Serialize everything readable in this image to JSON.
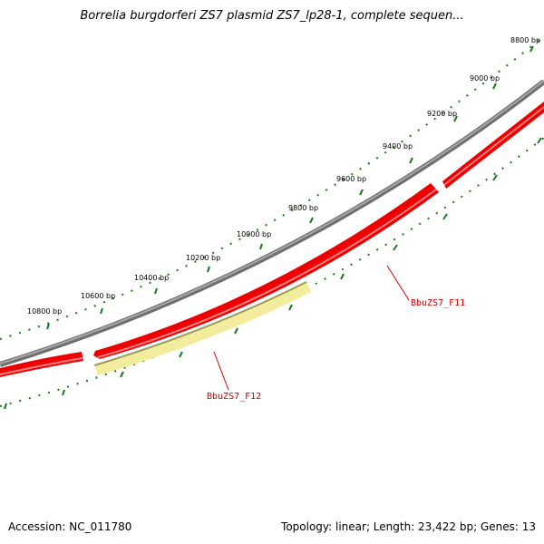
{
  "title": "Borrelia burgdorferi ZS7 plasmid ZS7_lp28-1, complete sequen...",
  "footer": {
    "accession": "Accession: NC_011780",
    "summary": "Topology: linear; Length: 23,422 bp; Genes: 13"
  },
  "tick_labels": [
    "8800 bp",
    "9000 bp",
    "9200 bp",
    "9400 bp",
    "9600 bp",
    "9800 bp",
    "10000 bp",
    "10200 bp",
    "10400 bp",
    "10600 bp",
    "10800 bp"
  ],
  "genes": [
    {
      "label": "BbuZS7_F11",
      "color": "#dd0000"
    },
    {
      "label": "BbuZS7_F12",
      "color": "#f5eea0"
    }
  ],
  "colors": {
    "backbone": "#7d7d7d",
    "gene_red": "#ee0000",
    "gene_yellow": "#f3ec9c",
    "tick_green": "#1a7a1a",
    "label_red": "#cc0000"
  }
}
